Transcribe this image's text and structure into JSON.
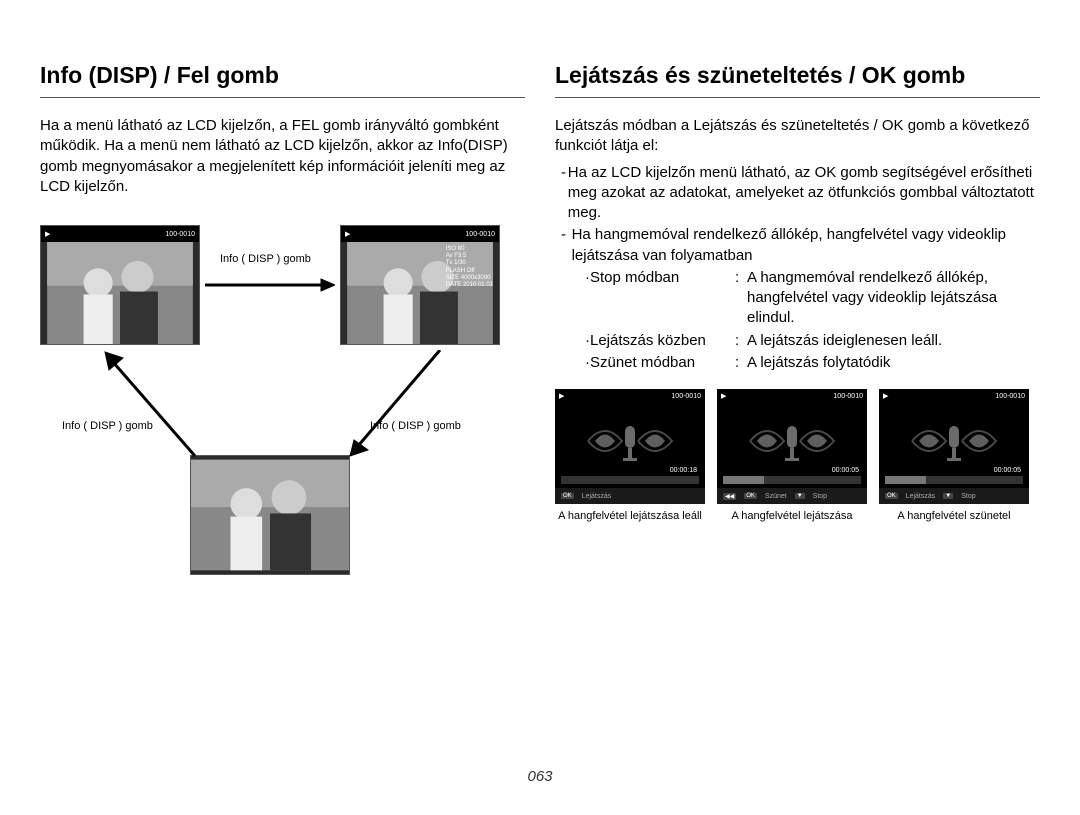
{
  "page_number": "063",
  "left": {
    "title": "Info (DISP) / Fel gomb",
    "body": "Ha a menü látható az LCD kijelzőn, a FEL gomb irányváltó gombként működik. Ha a menü nem látható az LCD kijelzőn, akkor az Info(DISP) gomb megnyomásakor a megjelenített kép információit jeleníti meg az LCD kijelzőn.",
    "thumb_counter": "100-0010",
    "osd": {
      "iso": "ISO 80",
      "av": "Av F3.5",
      "tv": "Tv 1/30",
      "flash": "FLASH Off",
      "size": "SIZE 4000x3000",
      "date": "DATE 2010.01.01"
    },
    "arrow_a_label": "Info ( DISP ) gomb",
    "arrow_b_label": "Info ( DISP ) gomb",
    "arrow_c_label": "Info ( DISP ) gomb"
  },
  "right": {
    "title": "Lejátszás és szüneteltetés / OK gomb",
    "intro": "Lejátszás módban a Lejátszás és szüneteltetés / OK gomb a következő funkciót látja el:",
    "bullets": [
      "Ha az LCD kijelzőn menü látható, az OK gomb segítségével erősítheti meg azokat az adatokat, amelyeket az ötfunkciós gombbal változtatott meg.",
      "Ha hangmemóval rendelkező állókép, hangfelvétel vagy videoklip lejátszása van folyamatban"
    ],
    "modes": [
      {
        "label": "·Stop módban",
        "value": "A hangmemóval rendelkező állókép, hangfelvétel vagy videoklip lejátszása elindul."
      },
      {
        "label": "·Lejátszás közben",
        "value": "A lejátszás ideiglenesen leáll."
      },
      {
        "label": "·Szünet módban",
        "value": "A lejátszás folytatódik"
      }
    ],
    "previews": [
      {
        "counter": "100-0010",
        "time": "00:00:18",
        "controls": [
          [
            "OK",
            "Lejátszás"
          ]
        ],
        "fill": 0,
        "caption": "A hangfelvétel lejátszása leáll"
      },
      {
        "counter": "100-0010",
        "time": "00:00:05",
        "controls": [
          [
            "◀◀",
            ""
          ],
          [
            "OK",
            "Szünet"
          ],
          [
            "▼",
            "Stop"
          ]
        ],
        "fill": 30,
        "caption": "A hangfelvétel lejátszása"
      },
      {
        "counter": "100-0010",
        "time": "00:00:05",
        "controls": [
          [
            "OK",
            "Lejátszás"
          ],
          [
            "▼",
            "Stop"
          ]
        ],
        "fill": 30,
        "caption": "A hangfelvétel szünetel"
      }
    ]
  },
  "colors": {
    "text": "#000000",
    "background": "#ffffff",
    "thumb_bg": "#2b2b2b",
    "prev_bg": "#000000",
    "bar_bg": "#333333",
    "bar_fill": "#777777",
    "controls_bg": "#1a1a1a",
    "controls_text": "#aaaaaa"
  }
}
